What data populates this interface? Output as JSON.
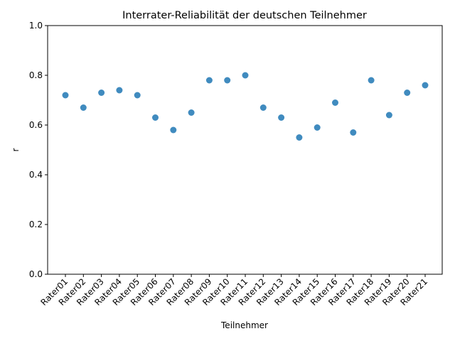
{
  "chart_data": {
    "type": "scatter",
    "title": "Interrater-Reliabilität der deutschen Teilnehmer",
    "xlabel": "Teilnehmer",
    "ylabel": "r",
    "ylim": [
      0,
      1
    ],
    "yticks": [
      "0.0",
      "0.2",
      "0.4",
      "0.6",
      "0.8",
      "1.0"
    ],
    "grid": false,
    "categories": [
      "Rater01",
      "Rater02",
      "Rater03",
      "Rater04",
      "Rater05",
      "Rater06",
      "Rater07",
      "Rater08",
      "Rater09",
      "Rater10",
      "Rater11",
      "Rater12",
      "Rater13",
      "Rater14",
      "Rater15",
      "Rater16",
      "Rater17",
      "Rater18",
      "Rater19",
      "Rater20",
      "Rater21"
    ],
    "values": [
      0.72,
      0.67,
      0.73,
      0.74,
      0.72,
      0.63,
      0.58,
      0.65,
      0.78,
      0.78,
      0.8,
      0.67,
      0.63,
      0.55,
      0.59,
      0.69,
      0.57,
      0.78,
      0.64,
      0.73,
      0.76
    ],
    "marker_color": "#1f77b4"
  }
}
